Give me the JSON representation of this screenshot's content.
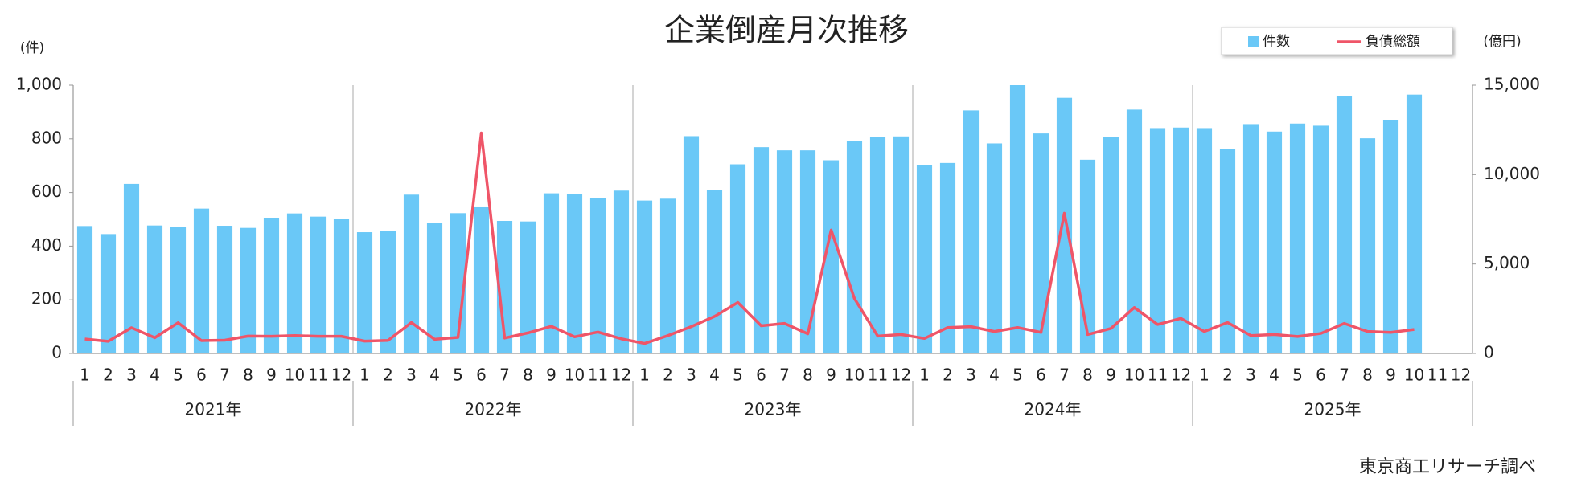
{
  "chart_data": {
    "type": "bar-line",
    "title": "企業倒産月次推移",
    "y_label": "(件)",
    "y2_label": "(億円)",
    "source": "東京商工リサーチ調べ",
    "categories": [
      "1",
      "2",
      "3",
      "4",
      "5",
      "6",
      "7",
      "8",
      "9",
      "10",
      "11",
      "12",
      "1",
      "2",
      "3",
      "4",
      "5",
      "6",
      "7",
      "8",
      "9",
      "10",
      "11",
      "12",
      "1",
      "2",
      "3",
      "4",
      "5",
      "6",
      "7",
      "8",
      "9",
      "10",
      "11",
      "12",
      "1",
      "2",
      "3",
      "4",
      "5",
      "6",
      "7",
      "8",
      "9",
      "10",
      "11",
      "12",
      "1",
      "2",
      "3",
      "4",
      "5",
      "6",
      "7",
      "8",
      "9",
      "10",
      "11",
      "12"
    ],
    "x_groups": [
      "2021年",
      "2022年",
      "2023年",
      "2024年",
      "2025年"
    ],
    "series": [
      {
        "name": "件数",
        "type": "bar",
        "color": "#6ac8f7",
        "values": [
          475,
          445,
          632,
          477,
          473,
          540,
          476,
          468,
          506,
          522,
          510,
          503,
          452,
          457,
          592,
          485,
          523,
          545,
          494,
          492,
          597,
          595,
          579,
          607,
          570,
          577,
          810,
          609,
          705,
          769,
          757,
          757,
          720,
          792,
          806,
          809,
          701,
          710,
          906,
          783,
          1000,
          820,
          953,
          722,
          807,
          909,
          840,
          842,
          840,
          763,
          855,
          827,
          857,
          849,
          961,
          802,
          871,
          965,
          null,
          null
        ]
      },
      {
        "name": "負債総額",
        "type": "line",
        "axis": "y2",
        "color": "#ef5568",
        "values": [
          810,
          680,
          1440,
          880,
          1720,
          720,
          740,
          970,
          960,
          1000,
          960,
          960,
          690,
          730,
          1730,
          790,
          900,
          12330,
          860,
          1150,
          1520,
          930,
          1200,
          820,
          560,
          1000,
          1500,
          2070,
          2850,
          1550,
          1680,
          1100,
          6900,
          3070,
          970,
          1060,
          840,
          1450,
          1500,
          1230,
          1450,
          1180,
          7840,
          1060,
          1400,
          2570,
          1620,
          1960,
          1230,
          1730,
          1000,
          1060,
          950,
          1120,
          1680,
          1230,
          1180,
          1340,
          null,
          null
        ]
      }
    ],
    "ylim": [
      0,
      1000
    ],
    "yticks": [
      0,
      200,
      400,
      600,
      800,
      {
        "value": 1000,
        "label": "1,000"
      }
    ],
    "y2lim": [
      0,
      15000
    ],
    "y2ticks": [
      0,
      {
        "value": 5000,
        "label": "5,000"
      },
      {
        "value": 10000,
        "label": "10,000"
      },
      {
        "value": 15000,
        "label": "15,000"
      }
    ],
    "legend": "top-right"
  }
}
